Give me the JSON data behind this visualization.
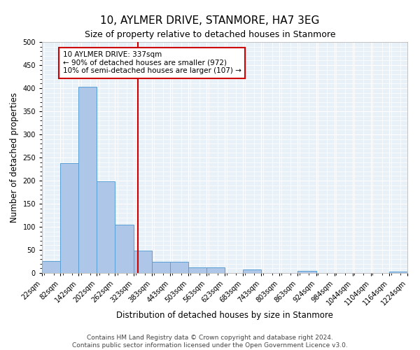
{
  "title": "10, AYLMER DRIVE, STANMORE, HA7 3EG",
  "subtitle": "Size of property relative to detached houses in Stanmore",
  "xlabel": "Distribution of detached houses by size in Stanmore",
  "ylabel": "Number of detached properties",
  "bin_edges": [
    22,
    82,
    142,
    202,
    262,
    323,
    383,
    443,
    503,
    563,
    623,
    683,
    743,
    803,
    863,
    924,
    984,
    1044,
    1104,
    1164,
    1224
  ],
  "bar_heights": [
    26,
    238,
    403,
    199,
    105,
    48,
    25,
    25,
    12,
    12,
    0,
    7,
    0,
    0,
    5,
    0,
    0,
    0,
    0,
    3
  ],
  "bar_color": "#aec6e8",
  "bar_edge_color": "#5a9fd4",
  "property_value": 337,
  "vline_color": "#cc0000",
  "annotation_text": "10 AYLMER DRIVE: 337sqm\n← 90% of detached houses are smaller (972)\n10% of semi-detached houses are larger (107) →",
  "annotation_box_color": "#ffffff",
  "annotation_box_edge_color": "#cc0000",
  "ylim": [
    0,
    500
  ],
  "tick_labels": [
    "22sqm",
    "82sqm",
    "142sqm",
    "202sqm",
    "262sqm",
    "323sqm",
    "383sqm",
    "443sqm",
    "503sqm",
    "563sqm",
    "623sqm",
    "683sqm",
    "743sqm",
    "803sqm",
    "863sqm",
    "924sqm",
    "984sqm",
    "1044sqm",
    "1104sqm",
    "1164sqm",
    "1224sqm"
  ],
  "footer_line1": "Contains HM Land Registry data © Crown copyright and database right 2024.",
  "footer_line2": "Contains public sector information licensed under the Open Government Licence v3.0.",
  "bg_color": "#e8f0f8",
  "fig_bg_color": "#ffffff",
  "grid_color": "#ffffff",
  "title_fontsize": 11,
  "subtitle_fontsize": 9,
  "axis_label_fontsize": 8.5,
  "tick_fontsize": 7,
  "footer_fontsize": 6.5,
  "annotation_fontsize": 7.5
}
